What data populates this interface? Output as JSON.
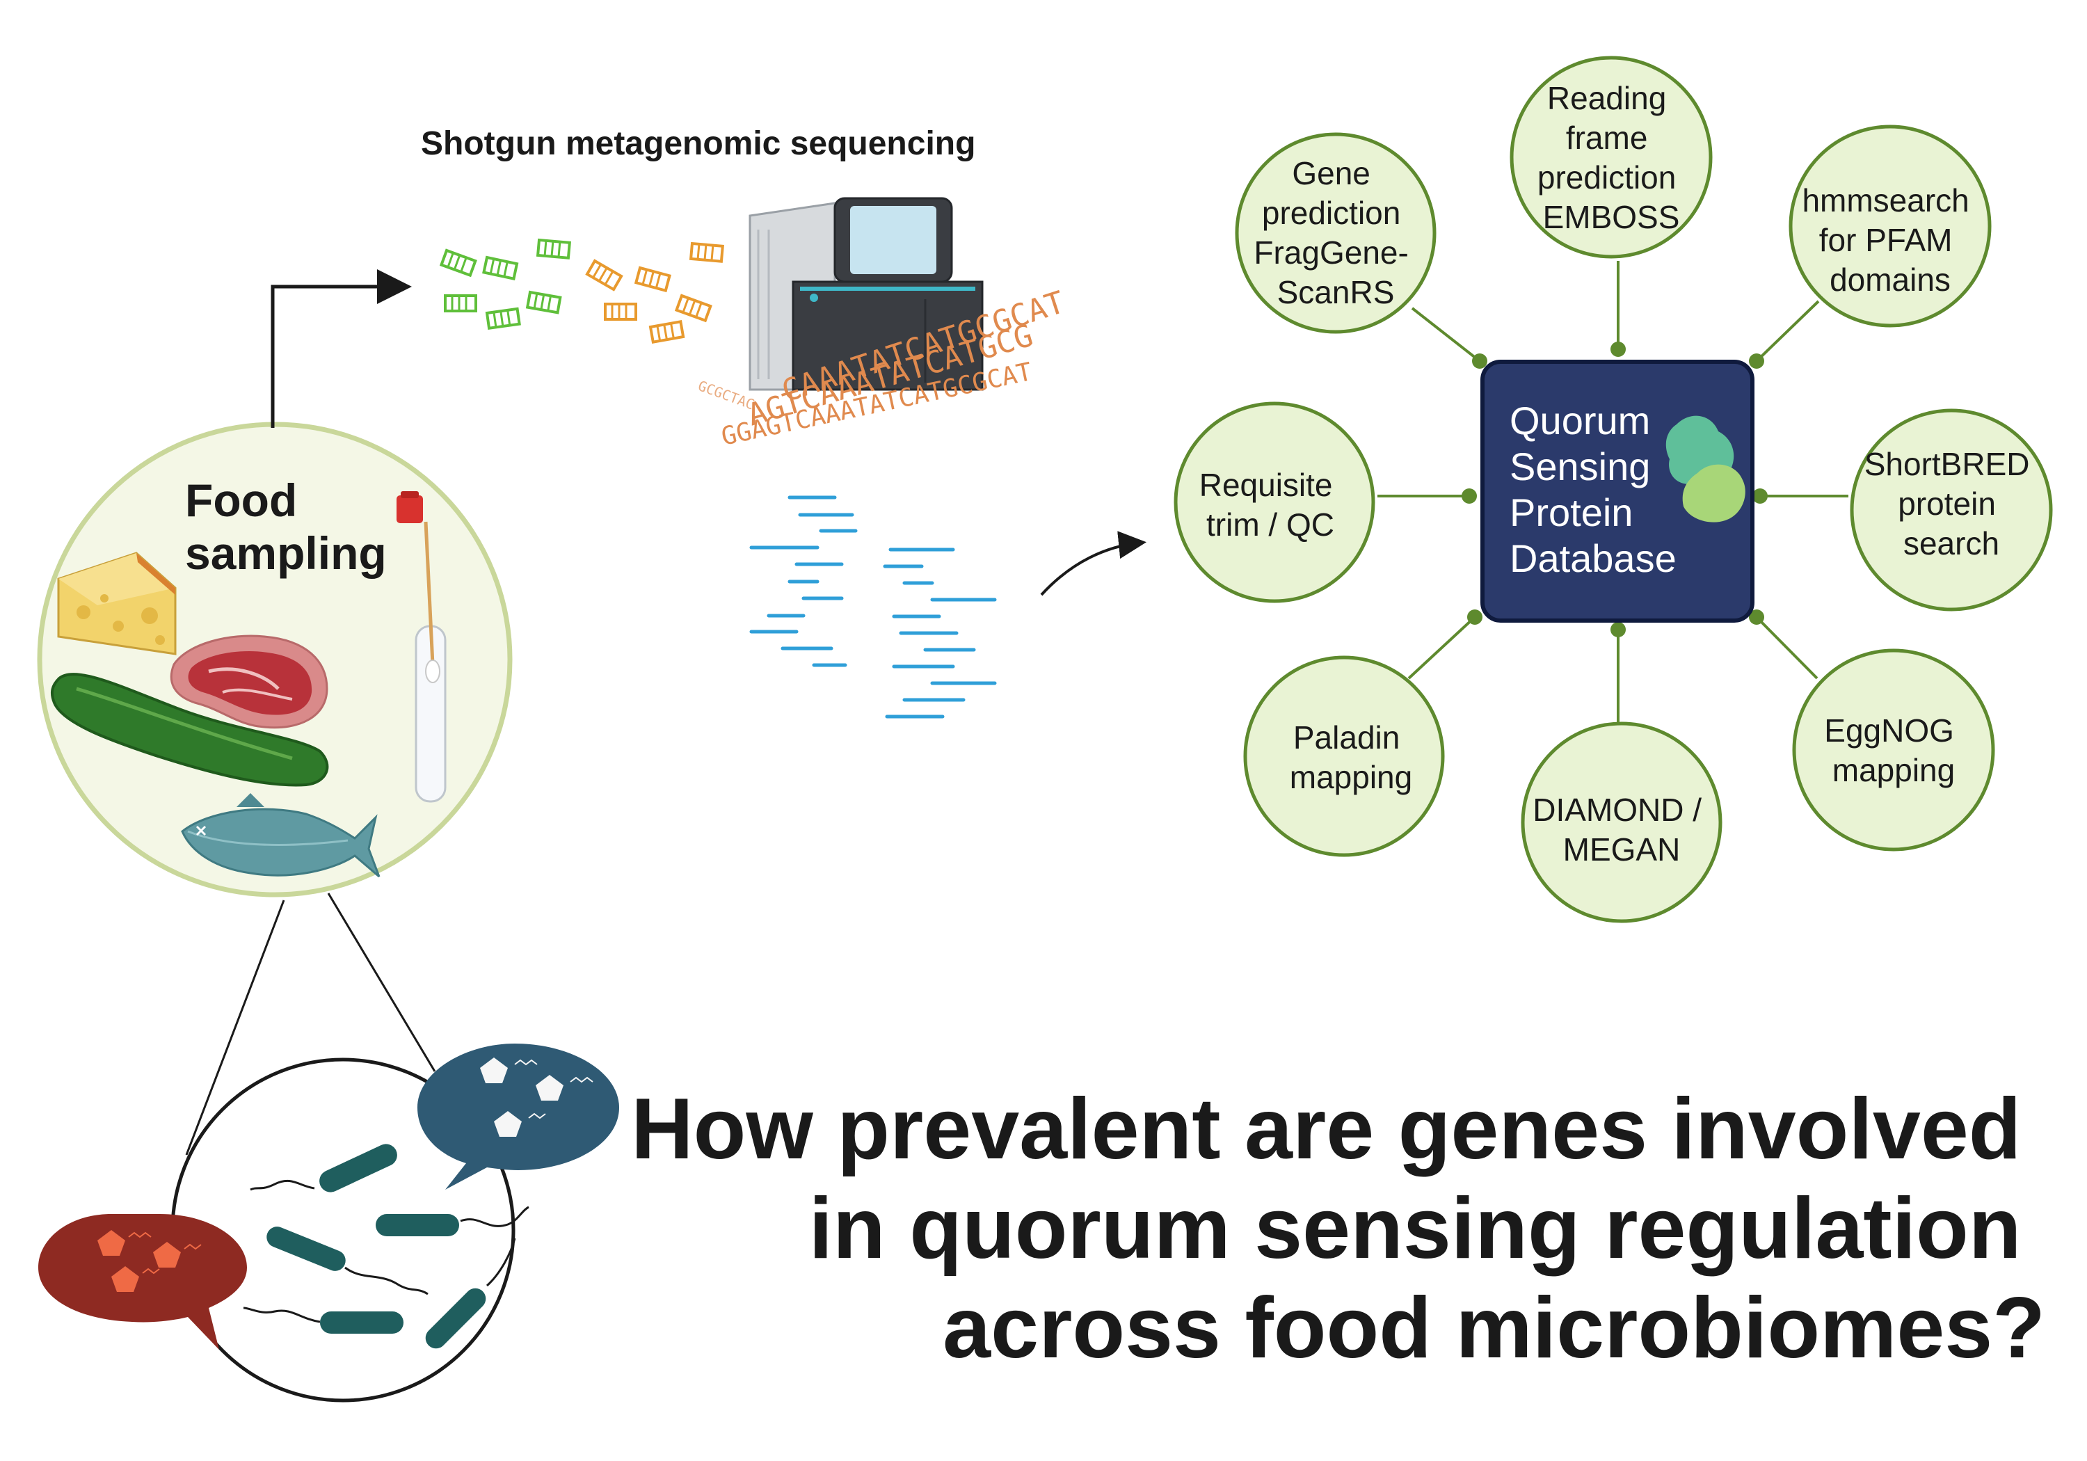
{
  "sequencing_label": "Shotgun metagenomic sequencing",
  "food_sampling": [
    "Food",
    "sampling"
  ],
  "dna_reads": [
    "CAAATATCATGCGCAT",
    "AGTCAAATATCATGCG",
    "GGAGTCAAATATCATGCGCAT"
  ],
  "database": {
    "lines": [
      "Quorum",
      "Sensing",
      "Protein",
      "Database"
    ]
  },
  "satellites": [
    {
      "id": "gene-prediction",
      "lines": [
        "Gene",
        "prediction",
        "FragGene-",
        "ScanRS"
      ]
    },
    {
      "id": "reading-frame",
      "lines": [
        "Reading",
        "frame",
        "prediction",
        "EMBOSS"
      ]
    },
    {
      "id": "hmmsearch",
      "lines": [
        "hmmsearch",
        "for PFAM",
        "domains"
      ]
    },
    {
      "id": "shortbred",
      "lines": [
        "ShortBRED",
        "protein",
        "search"
      ]
    },
    {
      "id": "eggnog",
      "lines": [
        "EggNOG",
        "mapping"
      ]
    },
    {
      "id": "diamond",
      "lines": [
        "DIAMOND /",
        "MEGAN"
      ]
    },
    {
      "id": "paladin",
      "lines": [
        "Paladin",
        "mapping"
      ]
    },
    {
      "id": "requisite",
      "lines": [
        "Requisite",
        "trim / QC"
      ]
    }
  ],
  "question": [
    "How prevalent are genes involved",
    "in quorum sensing regulation",
    "across food microbiomes?"
  ],
  "colors": {
    "satellite_fill": "#e9f3d4",
    "satellite_stroke": "#5e8a2e",
    "database_fill": "#2b3a6b",
    "database_stroke": "#0f1a3d",
    "food_circle_fill": "#f4f7e6",
    "food_circle_stroke": "#c9d79a",
    "green_fragments": "#5fbf3a",
    "orange_fragments": "#e89a2e",
    "reads": "#2f9fd8",
    "dna_text": "#e08a4e",
    "bacteria": "#1f5e5e",
    "bubble_red": "#8e2a22",
    "bubble_blue": "#2f5a74"
  },
  "icons": [
    "arrow-right-icon",
    "sequencer-icon",
    "cheese-icon",
    "steak-icon",
    "cucumber-icon",
    "fish-icon",
    "swab-tube-icon",
    "protein-blob-icon",
    "bacteria-icon",
    "speech-bubble-icon"
  ]
}
